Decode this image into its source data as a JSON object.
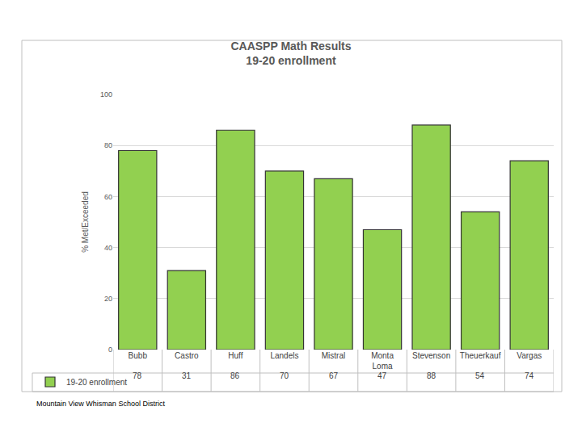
{
  "chart_data": {
    "type": "bar",
    "title": "CAASPP Math Results",
    "subtitle": "19-20 enrollment",
    "y_label": "% Met/Exceeded",
    "categories": [
      "Bubb",
      "Castro",
      "Huff",
      "Landels",
      "Mistral",
      "Monta Loma",
      "Stevenson",
      "Theuerkauf",
      "Vargas"
    ],
    "series": [
      {
        "name": "19-20 enrollment",
        "color": "#92d050",
        "values": [
          78,
          31,
          86,
          70,
          67,
          47,
          88,
          54,
          74
        ]
      }
    ],
    "ylim": [
      0,
      100
    ],
    "yticks": [
      0,
      20,
      40,
      60,
      80,
      100
    ],
    "grid": true,
    "data_labels": true,
    "note": "Mountain View Whisman School District"
  }
}
